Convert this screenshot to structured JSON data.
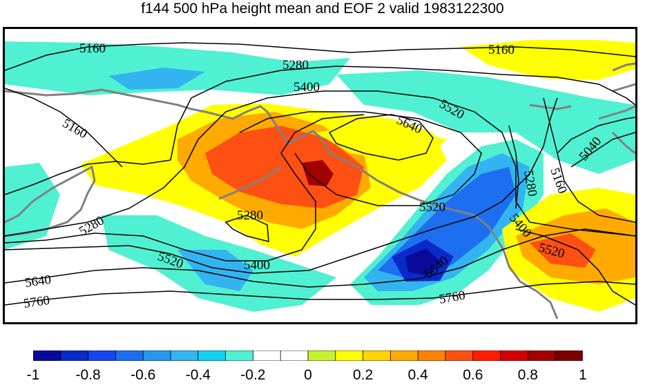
{
  "title": "f144 500 hPa height mean and EOF 2 valid 1983122300",
  "colors": {
    "coastline": "#808080",
    "contour": "#000000",
    "frame": "#000000"
  },
  "contour_labels": [
    "5160",
    "5280",
    "5400",
    "5520",
    "5640",
    "5760",
    "5040"
  ],
  "colorbar": {
    "colors": [
      "#0a0a9a",
      "#0a2ac8",
      "#1446f0",
      "#1e6ef0",
      "#2896f0",
      "#32b4f0",
      "#14d2f0",
      "#50f0d2",
      "#ffffff",
      "#ffffff",
      "#c8f032",
      "#ffff00",
      "#ffd200",
      "#ffaa00",
      "#ff8200",
      "#ff5014",
      "#ff1e00",
      "#d20000",
      "#a00000",
      "#780000"
    ],
    "tick_labels": [
      "-1",
      "-0.8",
      "-0.6",
      "-0.4",
      "-0.2",
      "0",
      "0.2",
      "0.4",
      "0.6",
      "0.8",
      "1"
    ]
  }
}
